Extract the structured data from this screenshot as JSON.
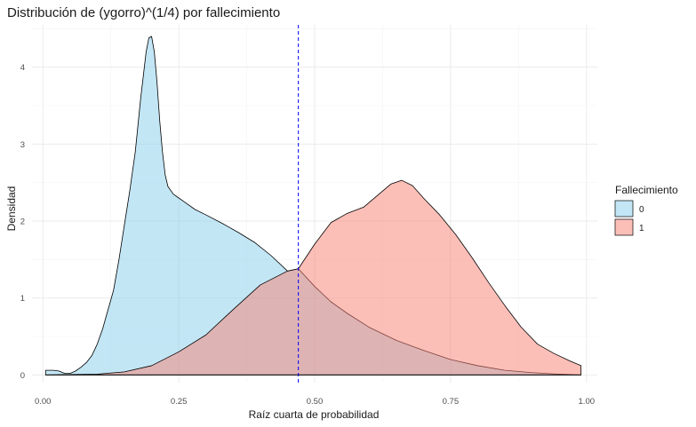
{
  "chart_data": {
    "type": "area",
    "title": "Distribución de (ygorro)^(1/4) por fallecimiento",
    "xlabel": "Raíz cuarta de probabilidad",
    "ylabel": "Densidad",
    "xlim": [
      -0.02,
      1.02
    ],
    "ylim": [
      -0.1,
      4.55
    ],
    "x_ticks": [
      0.0,
      0.25,
      0.5,
      0.75,
      1.0
    ],
    "x_tick_labels": [
      "0.00",
      "0.25",
      "0.50",
      "0.75",
      "1.00"
    ],
    "y_ticks": [
      0,
      1,
      2,
      3,
      4
    ],
    "y_tick_labels": [
      "0",
      "1",
      "2",
      "3",
      "4"
    ],
    "grid": true,
    "legend_position": "right",
    "legend_title": "Fallecimiento",
    "vline": {
      "x": 0.47,
      "color": "#0000ff",
      "style": "dashed"
    },
    "series": [
      {
        "name": "0",
        "fill": "#87ceeb",
        "x": [
          0.005,
          0.02,
          0.03,
          0.04,
          0.05,
          0.06,
          0.07,
          0.08,
          0.09,
          0.1,
          0.11,
          0.12,
          0.13,
          0.14,
          0.15,
          0.16,
          0.17,
          0.175,
          0.18,
          0.185,
          0.19,
          0.195,
          0.2,
          0.205,
          0.21,
          0.215,
          0.22,
          0.225,
          0.23,
          0.24,
          0.25,
          0.26,
          0.28,
          0.3,
          0.33,
          0.36,
          0.39,
          0.42,
          0.45,
          0.47,
          0.5,
          0.53,
          0.56,
          0.6,
          0.65,
          0.7,
          0.75,
          0.8,
          0.85,
          0.9,
          0.95,
          0.99
        ],
        "y": [
          0.06,
          0.06,
          0.05,
          0.02,
          0.02,
          0.05,
          0.1,
          0.16,
          0.25,
          0.4,
          0.6,
          0.85,
          1.1,
          1.5,
          1.95,
          2.4,
          2.9,
          3.25,
          3.6,
          3.9,
          4.2,
          4.38,
          4.4,
          4.2,
          3.8,
          3.3,
          2.9,
          2.6,
          2.45,
          2.35,
          2.3,
          2.25,
          2.15,
          2.08,
          1.97,
          1.85,
          1.72,
          1.55,
          1.35,
          1.38,
          1.15,
          0.95,
          0.8,
          0.62,
          0.45,
          0.32,
          0.2,
          0.12,
          0.06,
          0.03,
          0.01,
          0.0
        ]
      },
      {
        "name": "1",
        "fill": "#fa8072",
        "x": [
          0.005,
          0.1,
          0.15,
          0.2,
          0.25,
          0.3,
          0.35,
          0.4,
          0.45,
          0.47,
          0.5,
          0.53,
          0.56,
          0.59,
          0.62,
          0.64,
          0.66,
          0.68,
          0.7,
          0.73,
          0.76,
          0.79,
          0.82,
          0.85,
          0.88,
          0.91,
          0.94,
          0.97,
          0.99
        ],
        "y": [
          0.0,
          0.01,
          0.04,
          0.12,
          0.3,
          0.52,
          0.85,
          1.17,
          1.35,
          1.38,
          1.7,
          1.98,
          2.1,
          2.18,
          2.36,
          2.48,
          2.53,
          2.46,
          2.3,
          2.08,
          1.82,
          1.52,
          1.2,
          0.9,
          0.62,
          0.4,
          0.28,
          0.18,
          0.12
        ]
      }
    ]
  }
}
